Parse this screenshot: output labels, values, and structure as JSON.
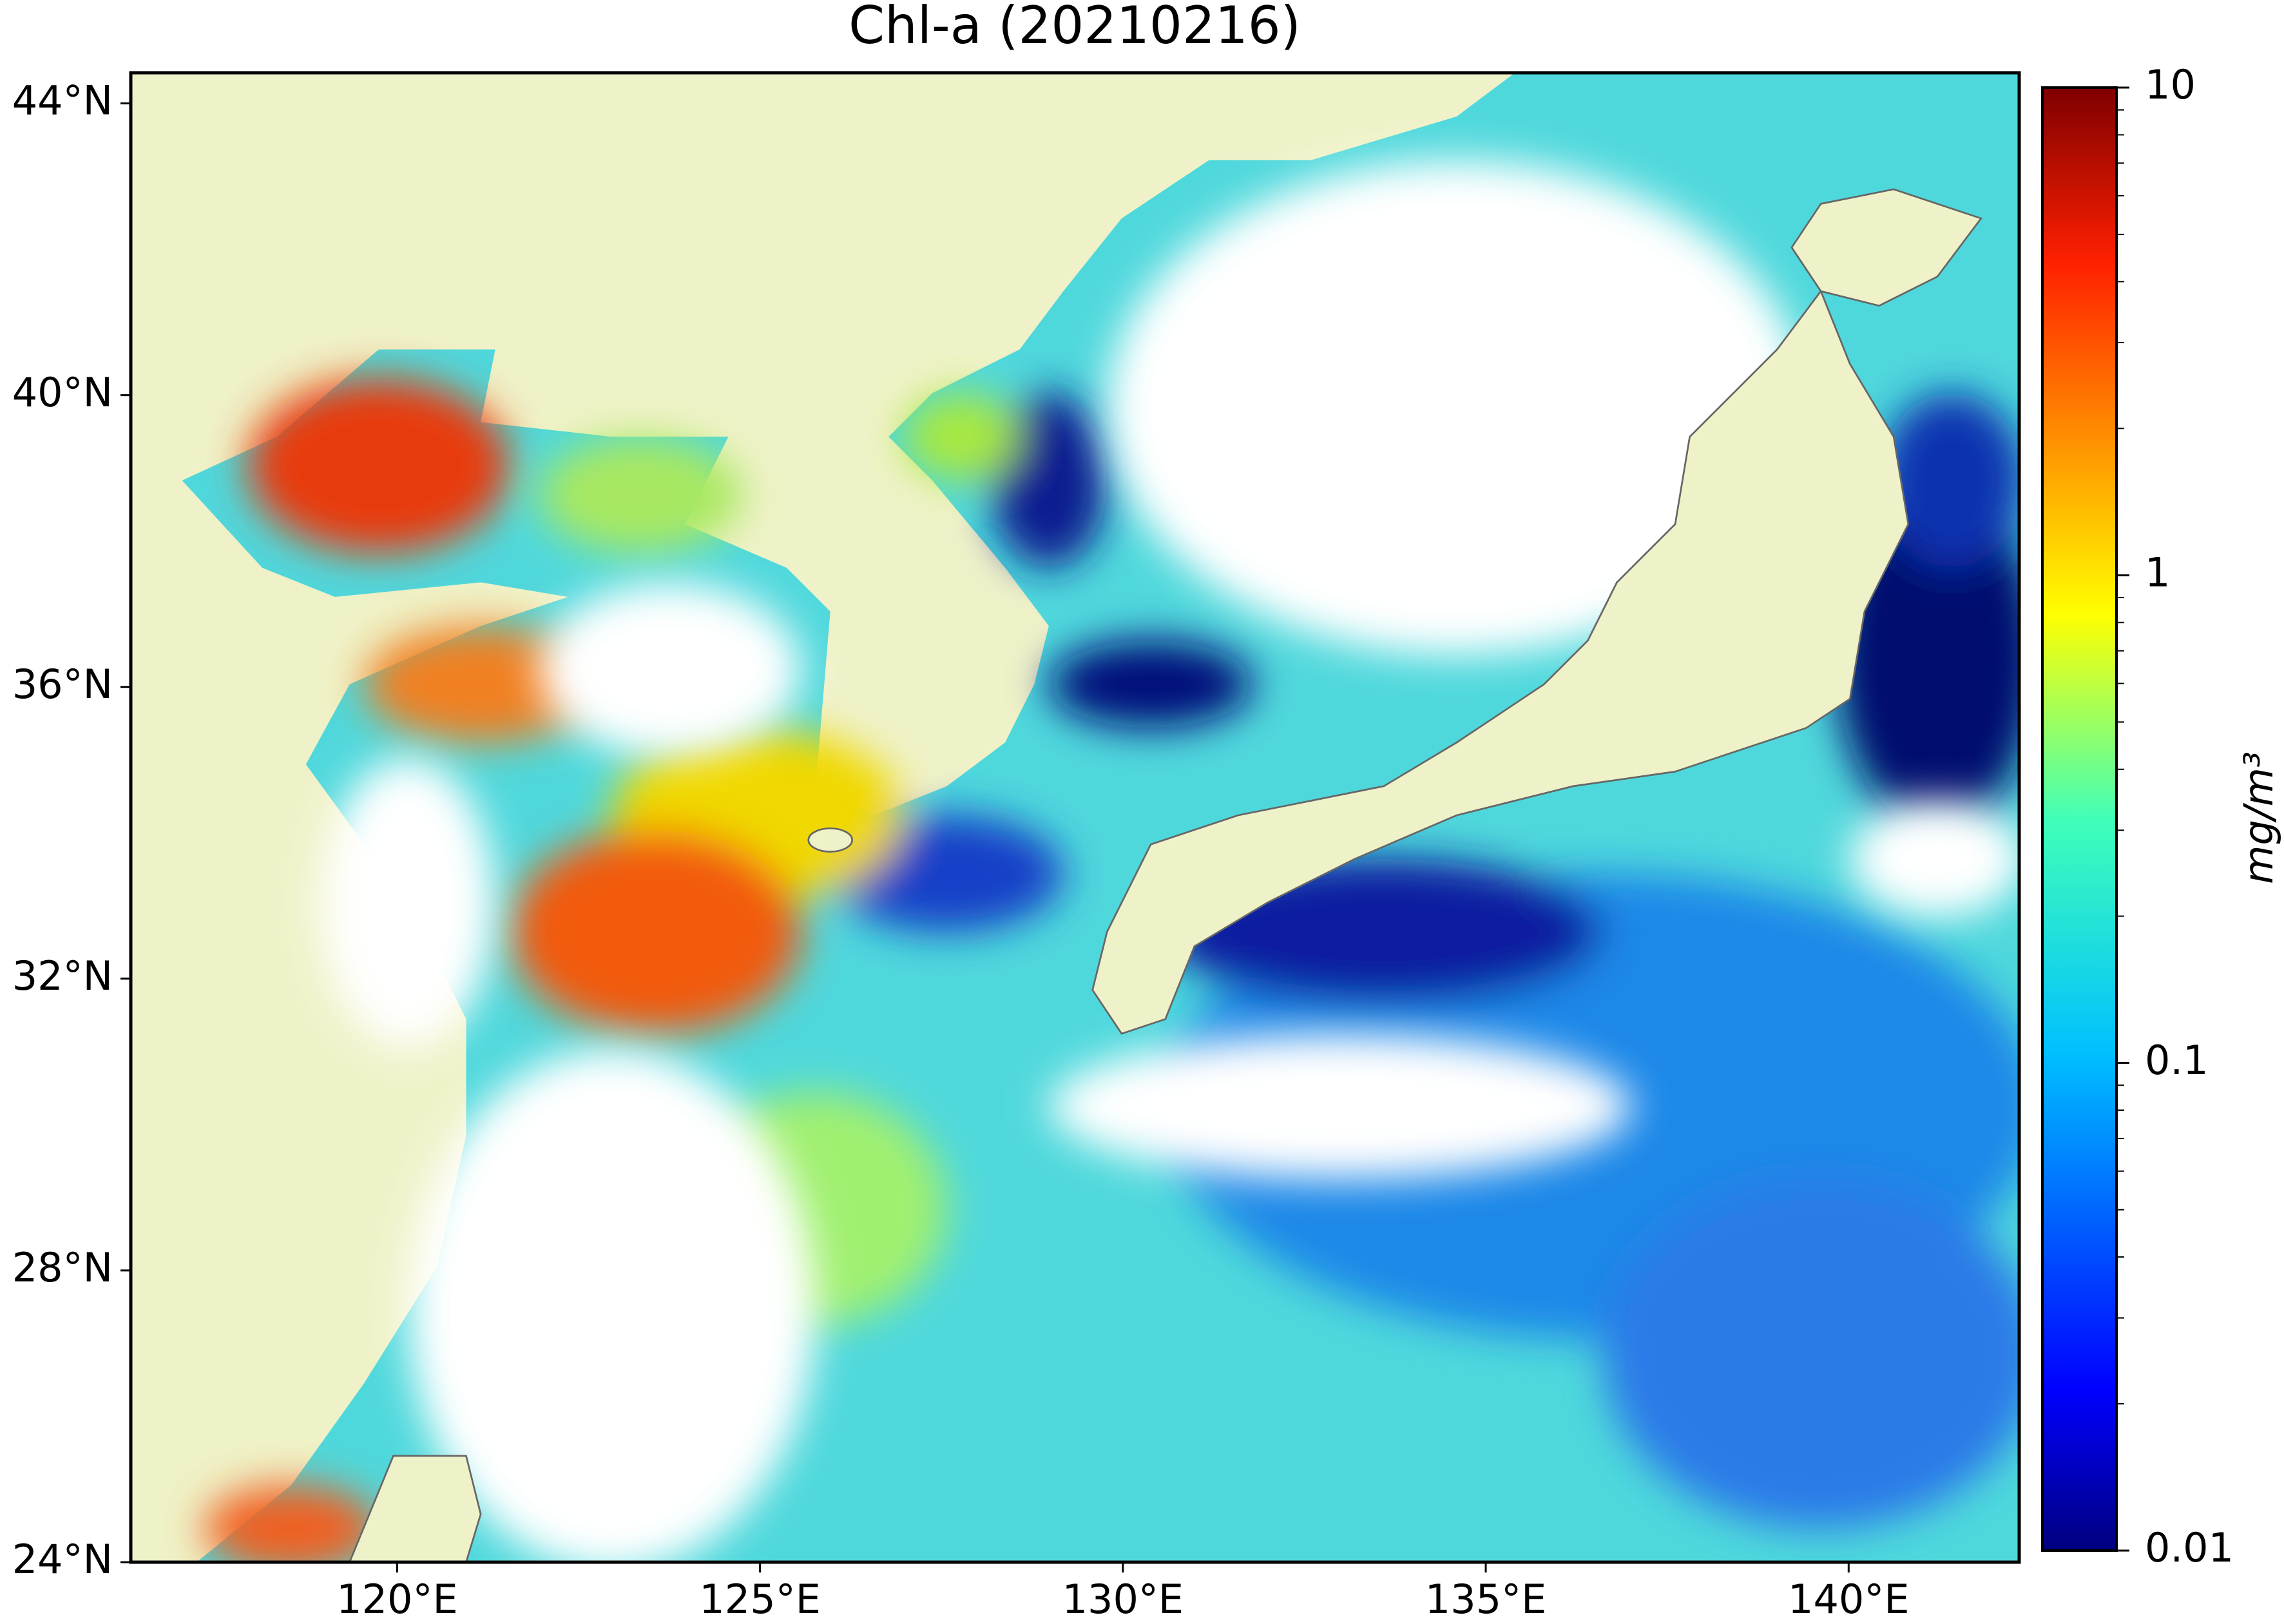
{
  "chart_data": {
    "type": "map",
    "title": "Chl-a (20210216)",
    "xlim": [
      116.33,
      142.35
    ],
    "xticks": [
      {
        "value": 120,
        "label": "120°E"
      },
      {
        "value": 125,
        "label": "125°E"
      },
      {
        "value": 130,
        "label": "130°E"
      },
      {
        "value": 135,
        "label": "135°E"
      },
      {
        "value": 140,
        "label": "140°E"
      }
    ],
    "ylim": [
      24,
      44.42
    ],
    "yticks": [
      {
        "value": 24,
        "label": "24°N"
      },
      {
        "value": 28,
        "label": "28°N"
      },
      {
        "value": 32,
        "label": "32°N"
      },
      {
        "value": 36,
        "label": "36°N"
      },
      {
        "value": 40,
        "label": "40°N"
      },
      {
        "value": 44,
        "label": "44°N"
      }
    ],
    "colorbar": {
      "label": "mg/m³",
      "log_scale": true,
      "lim": [
        0.01,
        10
      ],
      "ticks": [
        0.01,
        0.1,
        1,
        10
      ]
    }
  }
}
